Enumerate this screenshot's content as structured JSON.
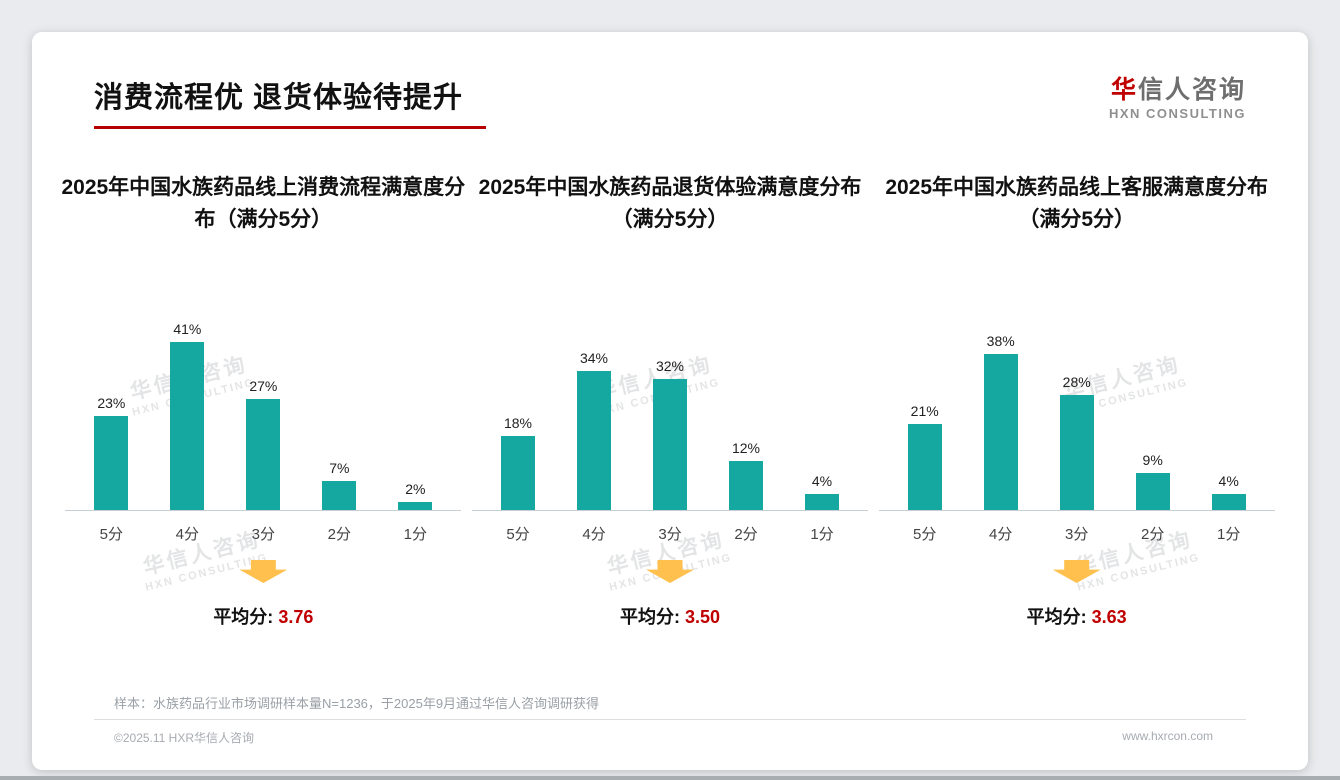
{
  "page": {
    "title": "消费流程优 退货体验待提升",
    "logo": {
      "cn_accent": "华",
      "cn_rest": "信人咨询",
      "en": "HXN CONSULTING"
    },
    "watermark": {
      "cn": "华信人咨询",
      "en": "HXN CONSULTING"
    },
    "footer_note": "样本：水族药品行业市场调研样本量N=1236，于2025年9月通过华信人咨询调研获得",
    "copyright": "©2025.11 HXR华信人咨询",
    "website": "www.hxrcon.com"
  },
  "colors": {
    "bar": "#15a8a1",
    "accent_red": "#c00000",
    "arrow": "#ffc04d",
    "underline": "#b50000"
  },
  "chart_data": [
    {
      "type": "bar",
      "title": "2025年中国水族药品线上消费流程满意度分布（满分5分）",
      "categories": [
        "5分",
        "4分",
        "3分",
        "2分",
        "1分"
      ],
      "values": [
        23,
        41,
        27,
        7,
        2
      ],
      "labels": [
        "23%",
        "41%",
        "27%",
        "7%",
        "2%"
      ],
      "average_label": "平均分:",
      "average": "3.76",
      "ylim": [
        0,
        45
      ],
      "legend": "none",
      "grid": false
    },
    {
      "type": "bar",
      "title": "2025年中国水族药品退货体验满意度分布（满分5分）",
      "categories": [
        "5分",
        "4分",
        "3分",
        "2分",
        "1分"
      ],
      "values": [
        18,
        34,
        32,
        12,
        4
      ],
      "labels": [
        "18%",
        "34%",
        "32%",
        "12%",
        "4%"
      ],
      "average_label": "平均分:",
      "average": "3.50",
      "ylim": [
        0,
        45
      ],
      "legend": "none",
      "grid": false
    },
    {
      "type": "bar",
      "title": "2025年中国水族药品线上客服满意度分布（满分5分）",
      "categories": [
        "5分",
        "4分",
        "3分",
        "2分",
        "1分"
      ],
      "values": [
        21,
        38,
        28,
        9,
        4
      ],
      "labels": [
        "21%",
        "38%",
        "28%",
        "9%",
        "4%"
      ],
      "average_label": "平均分:",
      "average": "3.63",
      "ylim": [
        0,
        45
      ],
      "legend": "none",
      "grid": false
    }
  ]
}
